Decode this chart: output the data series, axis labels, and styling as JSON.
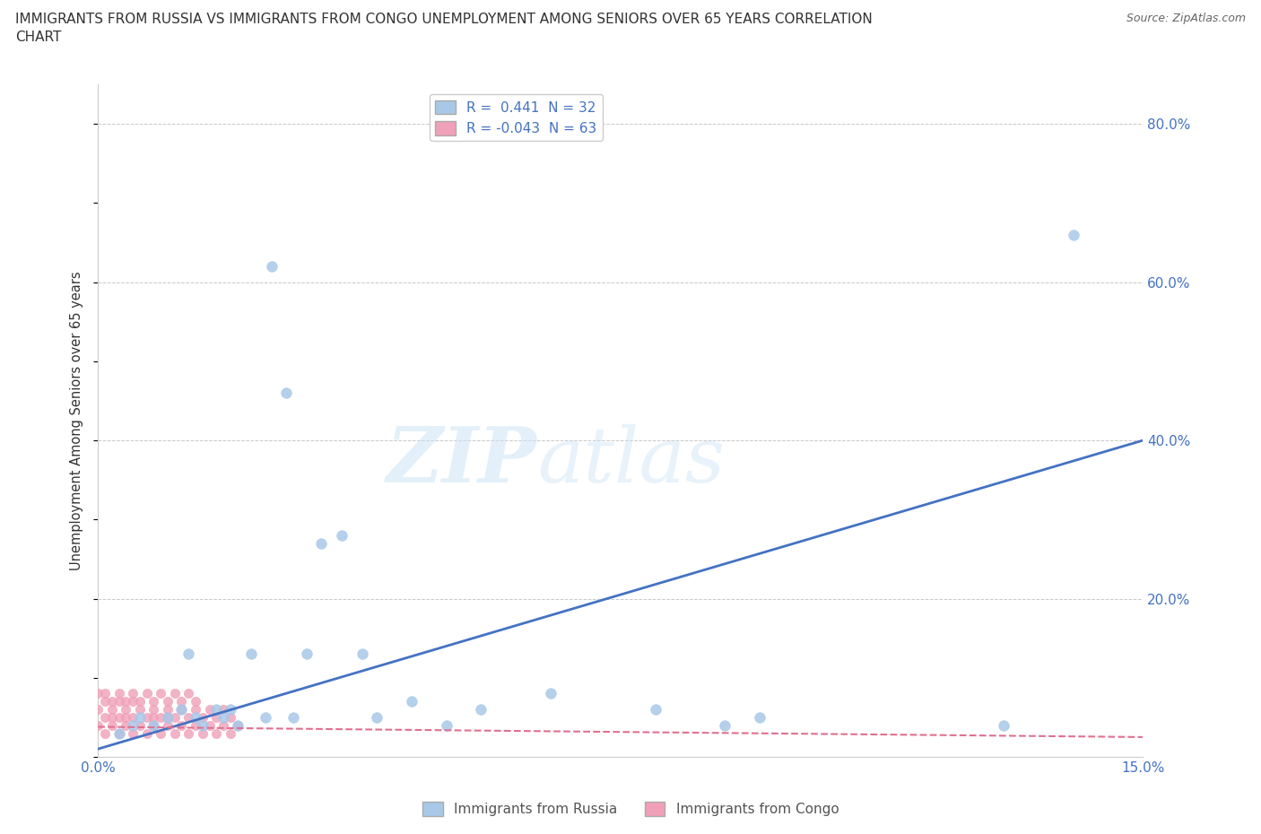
{
  "title_line1": "IMMIGRANTS FROM RUSSIA VS IMMIGRANTS FROM CONGO UNEMPLOYMENT AMONG SENIORS OVER 65 YEARS CORRELATION",
  "title_line2": "CHART",
  "source": "Source: ZipAtlas.com",
  "xlabel_russia": "Immigrants from Russia",
  "xlabel_congo": "Immigrants from Congo",
  "ylabel": "Unemployment Among Seniors over 65 years",
  "r_russia": 0.441,
  "n_russia": 32,
  "r_congo": -0.043,
  "n_congo": 63,
  "xlim": [
    0.0,
    0.15
  ],
  "ylim": [
    0.0,
    0.85
  ],
  "xticks": [
    0.0,
    0.03,
    0.06,
    0.09,
    0.12,
    0.15
  ],
  "ytick_labels_right": [
    "",
    "20.0%",
    "40.0%",
    "60.0%",
    "80.0%"
  ],
  "yticks": [
    0.0,
    0.2,
    0.4,
    0.6,
    0.8
  ],
  "russia_color": "#a8c8e8",
  "congo_color": "#f0a0b8",
  "russia_line_color": "#4472c4",
  "congo_line_color": "#e07090",
  "russia_scatter_x": [
    0.003,
    0.005,
    0.006,
    0.008,
    0.01,
    0.012,
    0.013,
    0.014,
    0.015,
    0.017,
    0.018,
    0.019,
    0.02,
    0.022,
    0.024,
    0.025,
    0.027,
    0.028,
    0.03,
    0.032,
    0.035,
    0.038,
    0.04,
    0.045,
    0.05,
    0.055,
    0.065,
    0.08,
    0.09,
    0.095,
    0.13,
    0.14
  ],
  "russia_scatter_y": [
    0.03,
    0.04,
    0.05,
    0.04,
    0.05,
    0.06,
    0.13,
    0.05,
    0.04,
    0.06,
    0.05,
    0.06,
    0.04,
    0.13,
    0.05,
    0.62,
    0.46,
    0.05,
    0.13,
    0.27,
    0.28,
    0.13,
    0.05,
    0.07,
    0.04,
    0.06,
    0.08,
    0.06,
    0.04,
    0.05,
    0.04,
    0.66
  ],
  "congo_scatter_x": [
    0.0,
    0.0,
    0.001,
    0.001,
    0.001,
    0.002,
    0.002,
    0.002,
    0.003,
    0.003,
    0.003,
    0.004,
    0.004,
    0.004,
    0.005,
    0.005,
    0.005,
    0.006,
    0.006,
    0.007,
    0.007,
    0.008,
    0.008,
    0.008,
    0.009,
    0.009,
    0.01,
    0.01,
    0.01,
    0.011,
    0.011,
    0.012,
    0.012,
    0.013,
    0.013,
    0.014,
    0.014,
    0.015,
    0.015,
    0.016,
    0.016,
    0.017,
    0.017,
    0.018,
    0.018,
    0.019,
    0.019,
    0.02,
    0.0,
    0.001,
    0.002,
    0.003,
    0.004,
    0.005,
    0.006,
    0.007,
    0.008,
    0.009,
    0.01,
    0.011,
    0.012,
    0.013,
    0.014
  ],
  "congo_scatter_y": [
    0.04,
    0.06,
    0.03,
    0.05,
    0.07,
    0.04,
    0.06,
    0.05,
    0.03,
    0.05,
    0.07,
    0.04,
    0.06,
    0.05,
    0.03,
    0.05,
    0.07,
    0.04,
    0.06,
    0.03,
    0.05,
    0.04,
    0.06,
    0.05,
    0.03,
    0.05,
    0.04,
    0.06,
    0.05,
    0.03,
    0.05,
    0.04,
    0.06,
    0.03,
    0.05,
    0.04,
    0.06,
    0.03,
    0.05,
    0.04,
    0.06,
    0.03,
    0.05,
    0.04,
    0.06,
    0.03,
    0.05,
    0.04,
    0.08,
    0.08,
    0.07,
    0.08,
    0.07,
    0.08,
    0.07,
    0.08,
    0.07,
    0.08,
    0.07,
    0.08,
    0.07,
    0.08,
    0.07
  ],
  "russia_line_x0": 0.0,
  "russia_line_y0": 0.01,
  "russia_line_x1": 0.15,
  "russia_line_y1": 0.4,
  "congo_line_x0": 0.0,
  "congo_line_y0": 0.038,
  "congo_line_x1": 0.15,
  "congo_line_y1": 0.025
}
